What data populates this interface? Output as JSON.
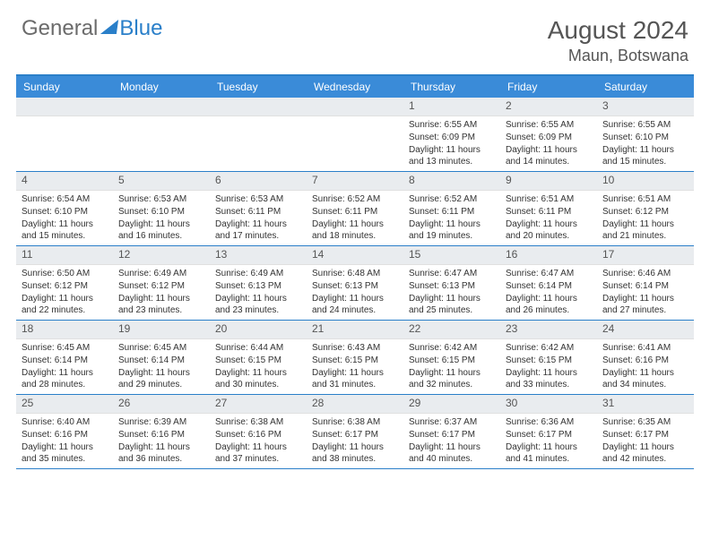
{
  "logo": {
    "part1": "General",
    "part2": "Blue"
  },
  "title": "August 2024",
  "location": "Maun, Botswana",
  "colors": {
    "header_bg": "#3a8bd8",
    "border": "#2a7fc9",
    "daynum_bg": "#e9ecef",
    "logo_gray": "#6b6b6b",
    "logo_blue": "#2a7fc9"
  },
  "day_names": [
    "Sunday",
    "Monday",
    "Tuesday",
    "Wednesday",
    "Thursday",
    "Friday",
    "Saturday"
  ],
  "weeks": [
    [
      {
        "n": "",
        "sr": "",
        "ss": "",
        "dl": ""
      },
      {
        "n": "",
        "sr": "",
        "ss": "",
        "dl": ""
      },
      {
        "n": "",
        "sr": "",
        "ss": "",
        "dl": ""
      },
      {
        "n": "",
        "sr": "",
        "ss": "",
        "dl": ""
      },
      {
        "n": "1",
        "sr": "Sunrise: 6:55 AM",
        "ss": "Sunset: 6:09 PM",
        "dl": "Daylight: 11 hours and 13 minutes."
      },
      {
        "n": "2",
        "sr": "Sunrise: 6:55 AM",
        "ss": "Sunset: 6:09 PM",
        "dl": "Daylight: 11 hours and 14 minutes."
      },
      {
        "n": "3",
        "sr": "Sunrise: 6:55 AM",
        "ss": "Sunset: 6:10 PM",
        "dl": "Daylight: 11 hours and 15 minutes."
      }
    ],
    [
      {
        "n": "4",
        "sr": "Sunrise: 6:54 AM",
        "ss": "Sunset: 6:10 PM",
        "dl": "Daylight: 11 hours and 15 minutes."
      },
      {
        "n": "5",
        "sr": "Sunrise: 6:53 AM",
        "ss": "Sunset: 6:10 PM",
        "dl": "Daylight: 11 hours and 16 minutes."
      },
      {
        "n": "6",
        "sr": "Sunrise: 6:53 AM",
        "ss": "Sunset: 6:11 PM",
        "dl": "Daylight: 11 hours and 17 minutes."
      },
      {
        "n": "7",
        "sr": "Sunrise: 6:52 AM",
        "ss": "Sunset: 6:11 PM",
        "dl": "Daylight: 11 hours and 18 minutes."
      },
      {
        "n": "8",
        "sr": "Sunrise: 6:52 AM",
        "ss": "Sunset: 6:11 PM",
        "dl": "Daylight: 11 hours and 19 minutes."
      },
      {
        "n": "9",
        "sr": "Sunrise: 6:51 AM",
        "ss": "Sunset: 6:11 PM",
        "dl": "Daylight: 11 hours and 20 minutes."
      },
      {
        "n": "10",
        "sr": "Sunrise: 6:51 AM",
        "ss": "Sunset: 6:12 PM",
        "dl": "Daylight: 11 hours and 21 minutes."
      }
    ],
    [
      {
        "n": "11",
        "sr": "Sunrise: 6:50 AM",
        "ss": "Sunset: 6:12 PM",
        "dl": "Daylight: 11 hours and 22 minutes."
      },
      {
        "n": "12",
        "sr": "Sunrise: 6:49 AM",
        "ss": "Sunset: 6:12 PM",
        "dl": "Daylight: 11 hours and 23 minutes."
      },
      {
        "n": "13",
        "sr": "Sunrise: 6:49 AM",
        "ss": "Sunset: 6:13 PM",
        "dl": "Daylight: 11 hours and 23 minutes."
      },
      {
        "n": "14",
        "sr": "Sunrise: 6:48 AM",
        "ss": "Sunset: 6:13 PM",
        "dl": "Daylight: 11 hours and 24 minutes."
      },
      {
        "n": "15",
        "sr": "Sunrise: 6:47 AM",
        "ss": "Sunset: 6:13 PM",
        "dl": "Daylight: 11 hours and 25 minutes."
      },
      {
        "n": "16",
        "sr": "Sunrise: 6:47 AM",
        "ss": "Sunset: 6:14 PM",
        "dl": "Daylight: 11 hours and 26 minutes."
      },
      {
        "n": "17",
        "sr": "Sunrise: 6:46 AM",
        "ss": "Sunset: 6:14 PM",
        "dl": "Daylight: 11 hours and 27 minutes."
      }
    ],
    [
      {
        "n": "18",
        "sr": "Sunrise: 6:45 AM",
        "ss": "Sunset: 6:14 PM",
        "dl": "Daylight: 11 hours and 28 minutes."
      },
      {
        "n": "19",
        "sr": "Sunrise: 6:45 AM",
        "ss": "Sunset: 6:14 PM",
        "dl": "Daylight: 11 hours and 29 minutes."
      },
      {
        "n": "20",
        "sr": "Sunrise: 6:44 AM",
        "ss": "Sunset: 6:15 PM",
        "dl": "Daylight: 11 hours and 30 minutes."
      },
      {
        "n": "21",
        "sr": "Sunrise: 6:43 AM",
        "ss": "Sunset: 6:15 PM",
        "dl": "Daylight: 11 hours and 31 minutes."
      },
      {
        "n": "22",
        "sr": "Sunrise: 6:42 AM",
        "ss": "Sunset: 6:15 PM",
        "dl": "Daylight: 11 hours and 32 minutes."
      },
      {
        "n": "23",
        "sr": "Sunrise: 6:42 AM",
        "ss": "Sunset: 6:15 PM",
        "dl": "Daylight: 11 hours and 33 minutes."
      },
      {
        "n": "24",
        "sr": "Sunrise: 6:41 AM",
        "ss": "Sunset: 6:16 PM",
        "dl": "Daylight: 11 hours and 34 minutes."
      }
    ],
    [
      {
        "n": "25",
        "sr": "Sunrise: 6:40 AM",
        "ss": "Sunset: 6:16 PM",
        "dl": "Daylight: 11 hours and 35 minutes."
      },
      {
        "n": "26",
        "sr": "Sunrise: 6:39 AM",
        "ss": "Sunset: 6:16 PM",
        "dl": "Daylight: 11 hours and 36 minutes."
      },
      {
        "n": "27",
        "sr": "Sunrise: 6:38 AM",
        "ss": "Sunset: 6:16 PM",
        "dl": "Daylight: 11 hours and 37 minutes."
      },
      {
        "n": "28",
        "sr": "Sunrise: 6:38 AM",
        "ss": "Sunset: 6:17 PM",
        "dl": "Daylight: 11 hours and 38 minutes."
      },
      {
        "n": "29",
        "sr": "Sunrise: 6:37 AM",
        "ss": "Sunset: 6:17 PM",
        "dl": "Daylight: 11 hours and 40 minutes."
      },
      {
        "n": "30",
        "sr": "Sunrise: 6:36 AM",
        "ss": "Sunset: 6:17 PM",
        "dl": "Daylight: 11 hours and 41 minutes."
      },
      {
        "n": "31",
        "sr": "Sunrise: 6:35 AM",
        "ss": "Sunset: 6:17 PM",
        "dl": "Daylight: 11 hours and 42 minutes."
      }
    ]
  ]
}
